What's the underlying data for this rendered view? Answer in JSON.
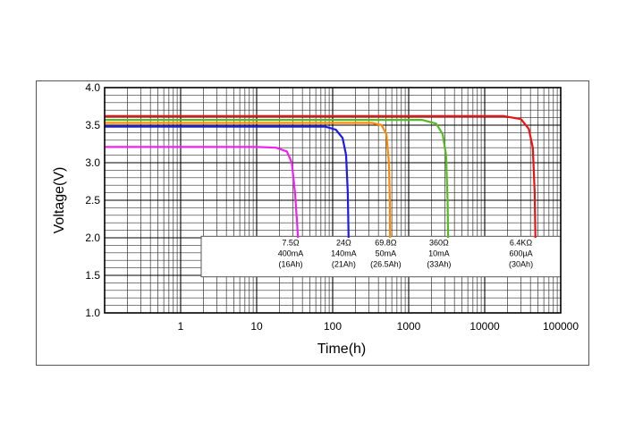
{
  "chart_data": {
    "type": "line",
    "title": "",
    "xlabel": "Time(h)",
    "ylabel": "Voltage(V)",
    "xscale": "log",
    "xlim": [
      0.1,
      100000
    ],
    "ylim": [
      1.0,
      4.0
    ],
    "grid": true,
    "x_tick_labels": [
      "1",
      "10",
      "100",
      "1000",
      "10000",
      "100000"
    ],
    "x_tick_values": [
      1,
      10,
      100,
      1000,
      10000,
      100000
    ],
    "y_tick_labels": [
      "4.0",
      "3.5",
      "3.0",
      "2.5",
      "2.0",
      "1.5",
      "1.0"
    ],
    "y_tick_values": [
      4.0,
      3.5,
      3.0,
      2.5,
      2.0,
      1.5,
      1.0
    ],
    "series": [
      {
        "name": "7.5Ω 400mA (16Ah)",
        "color": "#ee22ee",
        "label_lines": [
          "7.5Ω",
          "400mA",
          "(16Ah)"
        ],
        "label_x": 28,
        "points": [
          [
            0.1,
            3.21
          ],
          [
            10,
            3.21
          ],
          [
            18,
            3.2
          ],
          [
            25,
            3.15
          ],
          [
            29,
            3.0
          ],
          [
            32,
            2.6
          ],
          [
            34,
            2.2
          ],
          [
            35,
            2.0
          ]
        ]
      },
      {
        "name": "24Ω 140mA (21Ah)",
        "color": "#1a1aee",
        "label_lines": [
          "24Ω",
          "140mA",
          "(21Ah)"
        ],
        "label_x": 140,
        "points": [
          [
            0.1,
            3.48
          ],
          [
            80,
            3.48
          ],
          [
            110,
            3.44
          ],
          [
            135,
            3.33
          ],
          [
            150,
            3.1
          ],
          [
            158,
            2.6
          ],
          [
            162,
            2.0
          ]
        ]
      },
      {
        "name": "69.8Ω 50mA (26.5Ah)",
        "color": "#ff8800",
        "label_lines": [
          "69.8Ω",
          "50mA",
          "(26.5Ah)"
        ],
        "label_x": 500,
        "points": [
          [
            0.1,
            3.53
          ],
          [
            330,
            3.53
          ],
          [
            440,
            3.5
          ],
          [
            510,
            3.38
          ],
          [
            550,
            3.0
          ],
          [
            565,
            2.5
          ],
          [
            570,
            2.0
          ]
        ]
      },
      {
        "name": "360Ω 10mA (33Ah)",
        "color": "#55bb22",
        "label_lines": [
          "360Ω",
          "10mA",
          "(33Ah)"
        ],
        "label_x": 2500,
        "points": [
          [
            0.1,
            3.57
          ],
          [
            1500,
            3.57
          ],
          [
            2300,
            3.52
          ],
          [
            2800,
            3.38
          ],
          [
            3100,
            3.1
          ],
          [
            3250,
            2.5
          ],
          [
            3300,
            2.0
          ]
        ]
      },
      {
        "name": "6.4KΩ 600µA (30Ah)",
        "color": "#ee1111",
        "label_lines": [
          "6.4KΩ",
          "600µA",
          "(30Ah)"
        ],
        "label_x": 30000,
        "points": [
          [
            0.1,
            3.62
          ],
          [
            18000,
            3.62
          ],
          [
            30000,
            3.58
          ],
          [
            38000,
            3.45
          ],
          [
            43000,
            3.2
          ],
          [
            45500,
            2.6
          ],
          [
            46500,
            2.0
          ]
        ]
      }
    ]
  }
}
